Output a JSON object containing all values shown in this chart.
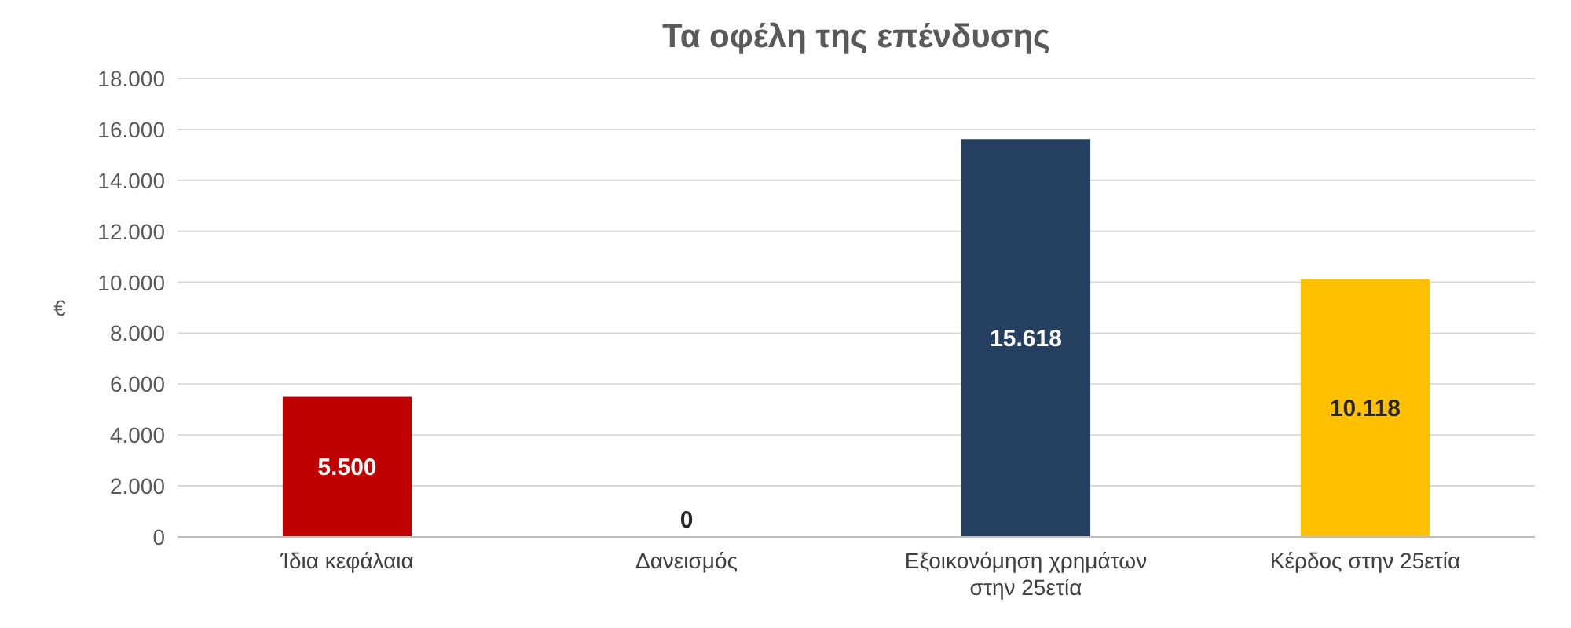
{
  "chart_data": {
    "type": "bar",
    "title": "Τα οφέλη της επένδυσης",
    "ylabel": "€",
    "categories": [
      "Ίδια κεφάλαια",
      "Δανεισμός",
      "Εξοικονόμηση χρημάτων στην 25ετία",
      "Κέρδος στην 25ετία"
    ],
    "values": [
      5500,
      0,
      15618,
      10118
    ],
    "colors": [
      "#c00000",
      "#7f7f7f",
      "#243f60",
      "#ffc000"
    ],
    "value_labels": [
      "5.500",
      "0",
      "15.618",
      "10.118"
    ],
    "ylim": [
      0,
      18000
    ],
    "yticks": [
      {
        "value": 0,
        "label": "0"
      },
      {
        "value": 2000,
        "label": "2.000"
      },
      {
        "value": 4000,
        "label": "4.000"
      },
      {
        "value": 6000,
        "label": "6.000"
      },
      {
        "value": 8000,
        "label": "8.000"
      },
      {
        "value": 10000,
        "label": "10.000"
      },
      {
        "value": 12000,
        "label": "12.000"
      },
      {
        "value": 14000,
        "label": "14.000"
      },
      {
        "value": 16000,
        "label": "16.000"
      },
      {
        "value": 18000,
        "label": "18.000"
      }
    ],
    "grid": "y"
  }
}
